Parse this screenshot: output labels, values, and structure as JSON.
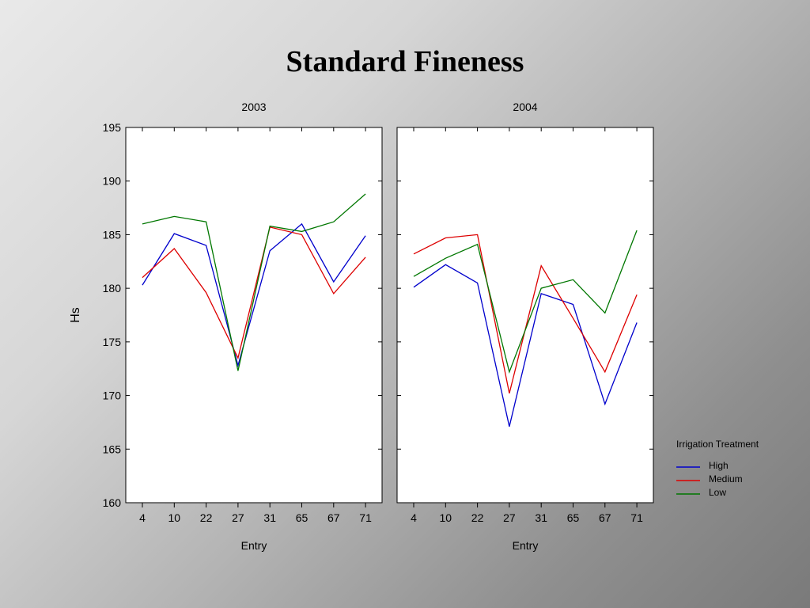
{
  "slide": {
    "title": "Standard Fineness"
  },
  "chart_data": {
    "type": "line",
    "ylabel": "Hs",
    "ylim": [
      160,
      195
    ],
    "yticks": [
      160,
      165,
      170,
      175,
      180,
      185,
      190,
      195
    ],
    "legend": {
      "title": "Irrigation Treatment",
      "position": "right",
      "entries": [
        {
          "name": "High",
          "color": "#0000cc"
        },
        {
          "name": "Medium",
          "color": "#dd0000"
        },
        {
          "name": "Low",
          "color": "#007700"
        }
      ]
    },
    "panels": [
      {
        "title": "2003",
        "xlabel": "Entry",
        "categories": [
          "4",
          "10",
          "22",
          "27",
          "31",
          "65",
          "67",
          "71"
        ],
        "series": [
          {
            "name": "High",
            "values": [
              180.3,
              185.1,
              184.0,
              172.8,
              183.5,
              186.0,
              180.6,
              184.9
            ]
          },
          {
            "name": "Medium",
            "values": [
              181.0,
              183.7,
              179.6,
              173.5,
              185.7,
              185.0,
              179.5,
              182.9
            ]
          },
          {
            "name": "Low",
            "values": [
              186.0,
              186.7,
              186.2,
              172.3,
              185.8,
              185.3,
              186.2,
              188.8
            ]
          }
        ]
      },
      {
        "title": "2004",
        "xlabel": "Entry",
        "categories": [
          "4",
          "10",
          "22",
          "27",
          "31",
          "65",
          "67",
          "71"
        ],
        "series": [
          {
            "name": "High",
            "values": [
              180.1,
              182.2,
              180.5,
              167.1,
              179.5,
              178.5,
              169.2,
              176.8
            ]
          },
          {
            "name": "Medium",
            "values": [
              183.2,
              184.7,
              185.0,
              170.2,
              182.1,
              177.2,
              172.2,
              179.4
            ]
          },
          {
            "name": "Low",
            "values": [
              181.1,
              182.8,
              184.1,
              172.2,
              180.0,
              180.8,
              177.7,
              185.4
            ]
          }
        ]
      }
    ]
  }
}
